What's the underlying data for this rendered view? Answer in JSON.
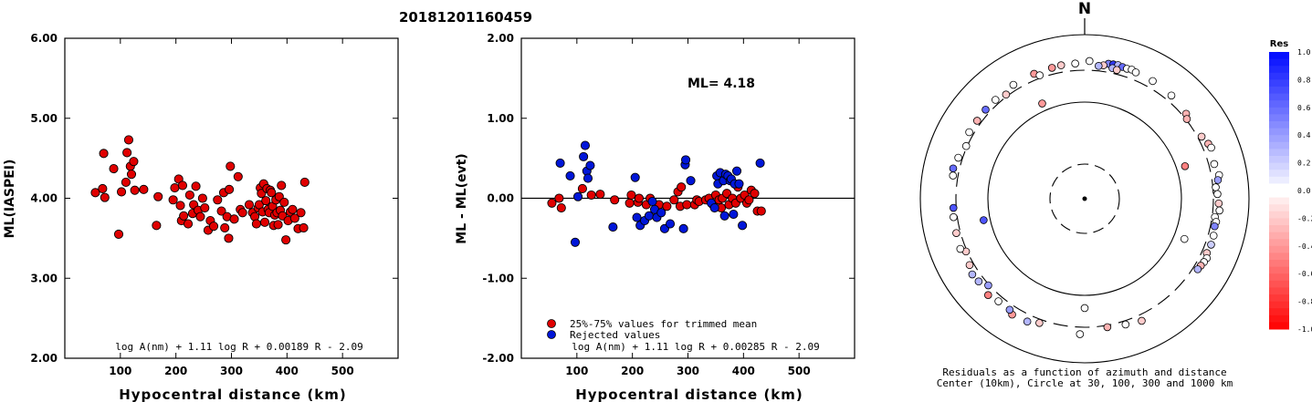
{
  "title": "20181201160459",
  "chart_data": [
    {
      "type": "scatter",
      "xlabel": "Hypocentral distance (km)",
      "ylabel": "ML(IASPEI)",
      "xlim": [
        0,
        600
      ],
      "ylim": [
        2,
        6
      ],
      "x_ticks": [
        "100",
        "200",
        "300",
        "400",
        "500"
      ],
      "y_ticks": [
        "2.00",
        "3.00",
        "4.00",
        "5.00",
        "6.00"
      ],
      "formula": "log A(nm) + 1.11 log R + 0.00189 R - 2.09",
      "color": "#e00000",
      "points": [
        [
          55,
          4.07
        ],
        [
          68,
          4.12
        ],
        [
          70,
          4.56
        ],
        [
          72,
          4.01
        ],
        [
          88,
          4.37
        ],
        [
          97,
          3.55
        ],
        [
          102,
          4.08
        ],
        [
          110,
          4.2
        ],
        [
          112,
          4.57
        ],
        [
          115,
          4.73
        ],
        [
          118,
          4.4
        ],
        [
          120,
          4.3
        ],
        [
          124,
          4.46
        ],
        [
          126,
          4.1
        ],
        [
          142,
          4.11
        ],
        [
          165,
          3.66
        ],
        [
          168,
          4.02
        ],
        [
          195,
          3.98
        ],
        [
          198,
          4.13
        ],
        [
          205,
          4.24
        ],
        [
          208,
          3.91
        ],
        [
          210,
          3.72
        ],
        [
          212,
          4.16
        ],
        [
          214,
          3.78
        ],
        [
          222,
          3.68
        ],
        [
          225,
          4.04
        ],
        [
          230,
          3.81
        ],
        [
          232,
          3.92
        ],
        [
          236,
          4.15
        ],
        [
          240,
          3.85
        ],
        [
          244,
          3.77
        ],
        [
          248,
          4.0
        ],
        [
          252,
          3.88
        ],
        [
          258,
          3.6
        ],
        [
          262,
          3.72
        ],
        [
          268,
          3.65
        ],
        [
          275,
          3.98
        ],
        [
          282,
          3.84
        ],
        [
          286,
          4.07
        ],
        [
          288,
          3.63
        ],
        [
          292,
          3.77
        ],
        [
          295,
          3.5
        ],
        [
          296,
          4.11
        ],
        [
          298,
          4.4
        ],
        [
          305,
          3.74
        ],
        [
          312,
          4.27
        ],
        [
          316,
          3.86
        ],
        [
          320,
          3.82
        ],
        [
          332,
          3.92
        ],
        [
          338,
          3.82
        ],
        [
          342,
          3.77
        ],
        [
          345,
          3.68
        ],
        [
          348,
          3.88
        ],
        [
          350,
          3.92
        ],
        [
          352,
          4.13
        ],
        [
          354,
          4.06
        ],
        [
          356,
          3.83
        ],
        [
          358,
          4.18
        ],
        [
          360,
          3.7
        ],
        [
          362,
          3.97
        ],
        [
          364,
          4.12
        ],
        [
          366,
          3.86
        ],
        [
          368,
          3.82
        ],
        [
          370,
          4.1
        ],
        [
          372,
          4.07
        ],
        [
          374,
          3.9
        ],
        [
          376,
          3.66
        ],
        [
          378,
          3.79
        ],
        [
          380,
          3.98
        ],
        [
          382,
          3.82
        ],
        [
          384,
          3.67
        ],
        [
          386,
          4.02
        ],
        [
          388,
          3.85
        ],
        [
          390,
          4.16
        ],
        [
          392,
          3.78
        ],
        [
          395,
          3.95
        ],
        [
          398,
          3.48
        ],
        [
          402,
          3.72
        ],
        [
          406,
          3.83
        ],
        [
          410,
          3.86
        ],
        [
          414,
          3.75
        ],
        [
          420,
          3.62
        ],
        [
          425,
          3.82
        ],
        [
          430,
          3.63
        ],
        [
          432,
          4.2
        ]
      ]
    },
    {
      "type": "scatter",
      "xlabel": "Hypocentral distance (km)",
      "ylabel": "ML - ML(evt)",
      "xlim": [
        0,
        600
      ],
      "ylim": [
        -2,
        2
      ],
      "x_ticks": [
        "100",
        "200",
        "300",
        "400",
        "500"
      ],
      "y_ticks": [
        "-2.00",
        "-1.00",
        "0.00",
        "1.00",
        "2.00"
      ],
      "reference_line": 0,
      "annotation": "ML= 4.18",
      "formula": "log A(nm) + 1.11 log R + 0.00285 R - 2.09",
      "legend": {
        "placement": "bottom-left",
        "entries": [
          {
            "label": "25%-75% values for trimmed mean",
            "color": "#e00000"
          },
          {
            "label": "Rejected values",
            "color": "#0016d8"
          }
        ]
      },
      "series": [
        {
          "color": "#e00000",
          "points": [
            [
              55,
              -0.06
            ],
            [
              68,
              0.0
            ],
            [
              72,
              -0.12
            ],
            [
              110,
              0.12
            ],
            [
              126,
              0.04
            ],
            [
              142,
              0.05
            ],
            [
              168,
              -0.02
            ],
            [
              195,
              -0.06
            ],
            [
              198,
              0.04
            ],
            [
              210,
              -0.05
            ],
            [
              212,
              0.0
            ],
            [
              225,
              -0.08
            ],
            [
              232,
              0.0
            ],
            [
              248,
              -0.08
            ],
            [
              262,
              -0.1
            ],
            [
              275,
              -0.02
            ],
            [
              282,
              0.08
            ],
            [
              286,
              -0.1
            ],
            [
              288,
              0.14
            ],
            [
              298,
              -0.08
            ],
            [
              312,
              -0.08
            ],
            [
              316,
              -0.02
            ],
            [
              320,
              -0.04
            ],
            [
              332,
              -0.02
            ],
            [
              338,
              0.0
            ],
            [
              345,
              -0.08
            ],
            [
              350,
              0.04
            ],
            [
              356,
              -0.02
            ],
            [
              360,
              -0.12
            ],
            [
              362,
              0.0
            ],
            [
              370,
              0.06
            ],
            [
              374,
              -0.08
            ],
            [
              380,
              0.0
            ],
            [
              386,
              -0.06
            ],
            [
              390,
              0.14
            ],
            [
              395,
              0.0
            ],
            [
              402,
              0.04
            ],
            [
              406,
              -0.06
            ],
            [
              410,
              -0.02
            ],
            [
              414,
              0.1
            ],
            [
              420,
              0.06
            ],
            [
              425,
              -0.16
            ],
            [
              432,
              -0.16
            ]
          ]
        },
        {
          "color": "#0016d8",
          "points": [
            [
              70,
              0.44
            ],
            [
              88,
              0.28
            ],
            [
              97,
              -0.55
            ],
            [
              102,
              0.02
            ],
            [
              112,
              0.52
            ],
            [
              115,
              0.66
            ],
            [
              118,
              0.34
            ],
            [
              120,
              0.25
            ],
            [
              124,
              0.41
            ],
            [
              165,
              -0.36
            ],
            [
              205,
              0.26
            ],
            [
              208,
              -0.24
            ],
            [
              214,
              -0.34
            ],
            [
              222,
              -0.28
            ],
            [
              230,
              -0.22
            ],
            [
              236,
              -0.04
            ],
            [
              240,
              -0.14
            ],
            [
              244,
              -0.24
            ],
            [
              252,
              -0.18
            ],
            [
              258,
              -0.38
            ],
            [
              268,
              -0.32
            ],
            [
              292,
              -0.38
            ],
            [
              295,
              0.42
            ],
            [
              296,
              0.48
            ],
            [
              305,
              0.22
            ],
            [
              342,
              -0.06
            ],
            [
              348,
              -0.12
            ],
            [
              352,
              0.28
            ],
            [
              354,
              0.18
            ],
            [
              358,
              0.32
            ],
            [
              364,
              0.22
            ],
            [
              366,
              -0.22
            ],
            [
              368,
              0.3
            ],
            [
              372,
              0.28
            ],
            [
              376,
              0.22
            ],
            [
              378,
              0.24
            ],
            [
              382,
              -0.2
            ],
            [
              384,
              0.18
            ],
            [
              388,
              0.34
            ],
            [
              392,
              0.18
            ],
            [
              398,
              -0.34
            ],
            [
              430,
              0.44
            ]
          ]
        }
      ]
    },
    {
      "type": "polar-scatter",
      "north_label": "N",
      "caption_line1": "Residuals as a function of azimuth and distance",
      "caption_line2": "Center (10km), Circle at 30, 100, 300 and 1000 km",
      "rings": [
        {
          "radius_km": 30,
          "style": "dashed"
        },
        {
          "radius_km": 100,
          "style": "solid"
        },
        {
          "radius_km": 300,
          "style": "dashed"
        },
        {
          "radius_km": 1000,
          "style": "solid"
        }
      ],
      "colorbar": {
        "title": "Res",
        "labels": [
          "1.0",
          "0.8",
          "0.6",
          "0.4",
          "0.2",
          "0.0",
          "-0.2",
          "-0.4",
          "-0.6",
          "-0.8",
          "-1.0"
        ],
        "range": [
          -1.0,
          1.0
        ]
      },
      "points": [
        {
          "az": 2,
          "dist": 410,
          "res": 0.0
        },
        {
          "az": 10,
          "dist": 400,
          "res": 0.5
        },
        {
          "az": 12,
          "dist": 405,
          "res": 0.8
        },
        {
          "az": 14,
          "dist": 410,
          "res": 0.3
        },
        {
          "az": 16,
          "dist": 400,
          "res": 0.6
        },
        {
          "az": 18,
          "dist": 395,
          "res": 0.0
        },
        {
          "az": 20,
          "dist": 405,
          "res": 0.0
        },
        {
          "az": 22,
          "dist": 390,
          "res": 0.0
        },
        {
          "az": 8,
          "dist": 370,
          "res": -0.2
        },
        {
          "az": 6,
          "dist": 355,
          "res": 0.3
        },
        {
          "az": 12,
          "dist": 355,
          "res": 0.3
        },
        {
          "az": 14,
          "dist": 345,
          "res": -0.2
        },
        {
          "az": 30,
          "dist": 385,
          "res": 0.0
        },
        {
          "az": 40,
          "dist": 370,
          "res": 0.0
        },
        {
          "az": 50,
          "dist": 340,
          "res": -0.3
        },
        {
          "az": 52,
          "dist": 310,
          "res": -0.3
        },
        {
          "az": 62,
          "dist": 340,
          "res": -0.2
        },
        {
          "az": 66,
          "dist": 375,
          "res": -0.3
        },
        {
          "az": 68,
          "dist": 390,
          "res": 0.0
        },
        {
          "az": 75,
          "dist": 360,
          "res": 0.0
        },
        {
          "az": 72,
          "dist": 135,
          "res": -0.5
        },
        {
          "az": 80,
          "dist": 390,
          "res": 0.0
        },
        {
          "az": 82,
          "dist": 365,
          "res": 0.4
        },
        {
          "az": 85,
          "dist": 330,
          "res": 0.0
        },
        {
          "az": 88,
          "dist": 345,
          "res": 0.0
        },
        {
          "az": 92,
          "dist": 360,
          "res": -0.2
        },
        {
          "az": 95,
          "dist": 375,
          "res": 0.0
        },
        {
          "az": 98,
          "dist": 330,
          "res": 0.0
        },
        {
          "az": 100,
          "dist": 352,
          "res": 0.0
        },
        {
          "az": 102,
          "dist": 345,
          "res": 0.5
        },
        {
          "az": 106,
          "dist": 360,
          "res": 0.0
        },
        {
          "az": 110,
          "dist": 365,
          "res": 0.2
        },
        {
          "az": 114,
          "dist": 355,
          "res": -0.2
        },
        {
          "az": 116,
          "dist": 382,
          "res": 0.0
        },
        {
          "az": 118,
          "dist": 372,
          "res": 0.0
        },
        {
          "az": 120,
          "dist": 360,
          "res": -0.3
        },
        {
          "az": 122,
          "dist": 350,
          "res": 0.3
        },
        {
          "az": 112,
          "dist": 145,
          "res": 0.0
        },
        {
          "az": 155,
          "dist": 370,
          "res": -0.2
        },
        {
          "az": 162,
          "dist": 340,
          "res": 0.0
        },
        {
          "az": 170,
          "dist": 320,
          "res": -0.3
        },
        {
          "az": 180,
          "dist": 155,
          "res": 0.0
        },
        {
          "az": 182,
          "dist": 380,
          "res": 0.0
        },
        {
          "az": 200,
          "dist": 340,
          "res": -0.2
        },
        {
          "az": 205,
          "dist": 380,
          "res": 0.3
        },
        {
          "az": 212,
          "dist": 395,
          "res": -0.4
        },
        {
          "az": 214,
          "dist": 360,
          "res": 0.4
        },
        {
          "az": 220,
          "dist": 360,
          "res": 0.0
        },
        {
          "az": 225,
          "dist": 390,
          "res": -0.5
        },
        {
          "az": 228,
          "dist": 310,
          "res": 0.4
        },
        {
          "az": 232,
          "dist": 365,
          "res": 0.3
        },
        {
          "az": 236,
          "dist": 378,
          "res": 0.3
        },
        {
          "az": 240,
          "dist": 345,
          "res": -0.2
        },
        {
          "az": 246,
          "dist": 312,
          "res": -0.2
        },
        {
          "az": 248,
          "dist": 360,
          "res": 0.0
        },
        {
          "az": 255,
          "dist": 345,
          "res": -0.2
        },
        {
          "az": 258,
          "dist": 125,
          "res": 0.7
        },
        {
          "az": 262,
          "dist": 340,
          "res": 0.0
        },
        {
          "az": 266,
          "dist": 330,
          "res": 0.7
        },
        {
          "az": 280,
          "dist": 355,
          "res": 0.0
        },
        {
          "az": 283,
          "dist": 370,
          "res": 0.6
        },
        {
          "az": 288,
          "dist": 345,
          "res": 0.0
        },
        {
          "az": 294,
          "dist": 310,
          "res": 0.0
        },
        {
          "az": 300,
          "dist": 350,
          "res": 0.0
        },
        {
          "az": 306,
          "dist": 345,
          "res": -0.3
        },
        {
          "az": 312,
          "dist": 350,
          "res": 0.6
        },
        {
          "az": 318,
          "dist": 350,
          "res": 0.0
        },
        {
          "az": 323,
          "dist": 320,
          "res": -0.2
        },
        {
          "az": 328,
          "dist": 365,
          "res": 0.0
        },
        {
          "az": 336,
          "dist": 130,
          "res": -0.4
        },
        {
          "az": 338,
          "dist": 370,
          "res": -0.4
        },
        {
          "az": 340,
          "dist": 330,
          "res": 0.0
        },
        {
          "az": 346,
          "dist": 372,
          "res": -0.4
        },
        {
          "az": 350,
          "dist": 380,
          "res": -0.2
        },
        {
          "az": 356,
          "dist": 380,
          "res": 0.0
        }
      ]
    }
  ]
}
